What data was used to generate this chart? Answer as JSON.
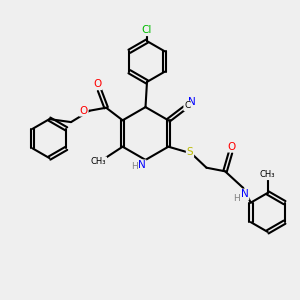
{
  "bg_color": "#efefef",
  "bond_color": "#000000",
  "atom_colors": {
    "O": "#ff0000",
    "N": "#0000ff",
    "S": "#bbbb00",
    "Cl": "#00bb00",
    "C": "#000000",
    "H": "#808080"
  },
  "figsize": [
    3.0,
    3.0
  ],
  "dpi": 100,
  "xlim": [
    0,
    10
  ],
  "ylim": [
    0,
    10
  ]
}
